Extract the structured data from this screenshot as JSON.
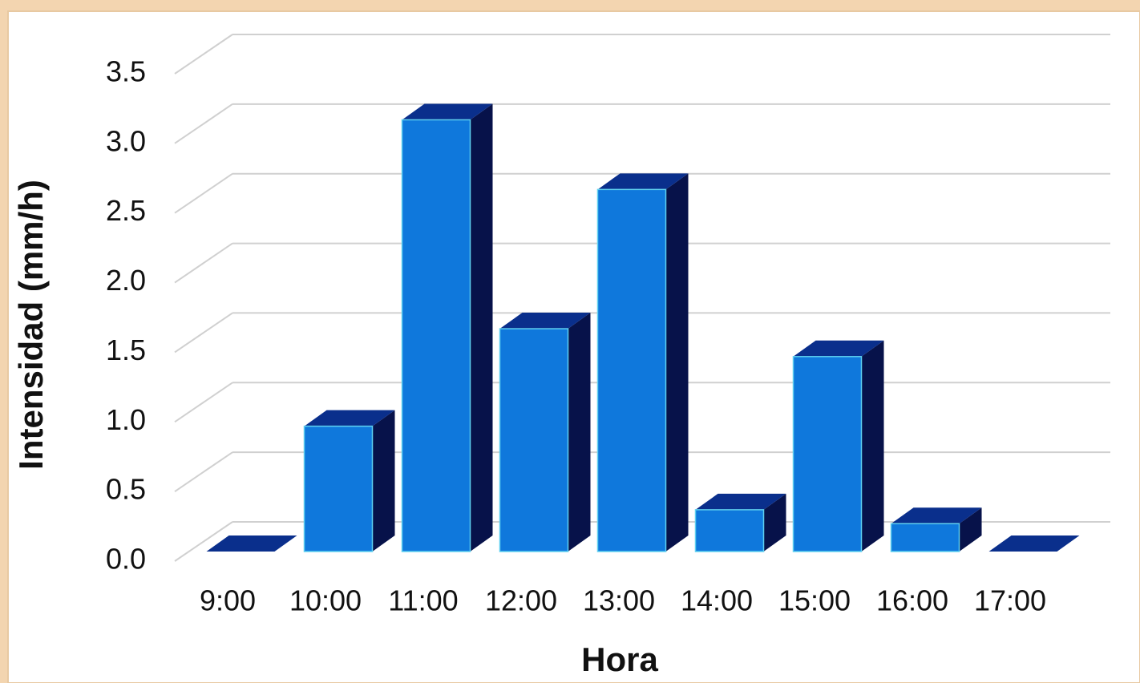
{
  "chart_data": {
    "type": "bar3d",
    "x_label": "Hora",
    "y_label": "Intensidad (mm/h)",
    "categories": [
      "9:00",
      "10:00",
      "11:00",
      "12:00",
      "13:00",
      "14:00",
      "15:00",
      "16:00",
      "17:00"
    ],
    "values": [
      0,
      0.9,
      3.1,
      1.6,
      2.6,
      0.3,
      1.4,
      0.2,
      0
    ],
    "color": "#0f78dc",
    "ylim": [
      0,
      3.5
    ],
    "yticks": [
      {
        "value": 0,
        "label": "0.0"
      },
      0.5,
      {
        "value": 1,
        "label": "1.0"
      },
      1.5,
      {
        "value": 2,
        "label": "2.0"
      },
      2.5,
      {
        "value": 3,
        "label": "3.0"
      },
      3.5
    ],
    "grid": true
  }
}
